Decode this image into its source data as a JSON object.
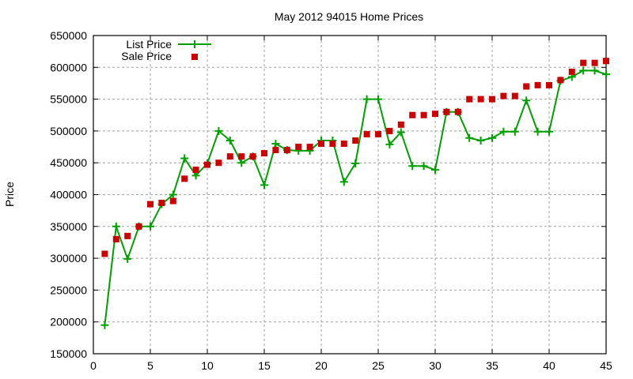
{
  "chart_data": {
    "type": "line",
    "title": "May 2012 94015 Home Prices",
    "xlabel": "",
    "ylabel": "Price",
    "xlim": [
      0,
      45
    ],
    "ylim": [
      150000,
      650000
    ],
    "xticks": [
      0,
      5,
      10,
      15,
      20,
      25,
      30,
      35,
      40,
      45
    ],
    "yticks": [
      150000,
      200000,
      250000,
      300000,
      350000,
      400000,
      450000,
      500000,
      550000,
      600000,
      650000
    ],
    "grid": true,
    "legend_position": "top-left",
    "x": [
      1,
      2,
      3,
      4,
      5,
      6,
      7,
      8,
      9,
      10,
      11,
      12,
      13,
      14,
      15,
      16,
      17,
      18,
      19,
      20,
      21,
      22,
      23,
      24,
      25,
      26,
      27,
      28,
      29,
      30,
      31,
      32,
      33,
      34,
      35,
      36,
      37,
      38,
      39,
      40,
      41,
      42,
      43,
      44,
      45
    ],
    "series": [
      {
        "name": "List Price",
        "style": "linespoints",
        "color": "#00a000",
        "values": [
          195000,
          350000,
          299000,
          350000,
          350000,
          385000,
          400000,
          457000,
          430000,
          449000,
          500000,
          485000,
          450000,
          460000,
          415000,
          480000,
          470000,
          469000,
          469000,
          485000,
          485000,
          420000,
          449000,
          550000,
          550000,
          479000,
          498000,
          445000,
          445000,
          439000,
          530000,
          530000,
          489000,
          485000,
          489000,
          499000,
          499000,
          548000,
          499000,
          499000,
          579000,
          585000,
          595000,
          595000,
          589000
        ]
      },
      {
        "name": "Sale Price",
        "style": "points",
        "color": "#cc0000",
        "values": [
          307000,
          330000,
          335000,
          350000,
          385000,
          387000,
          390000,
          425000,
          439000,
          447000,
          450000,
          460000,
          460000,
          460000,
          465000,
          470000,
          470000,
          475000,
          475000,
          480000,
          480000,
          480000,
          485000,
          495000,
          495000,
          500000,
          510000,
          525000,
          525000,
          527000,
          530000,
          530000,
          550000,
          550000,
          550000,
          555000,
          555000,
          570000,
          572000,
          572000,
          580000,
          593000,
          607000,
          607000,
          610000
        ]
      }
    ]
  }
}
